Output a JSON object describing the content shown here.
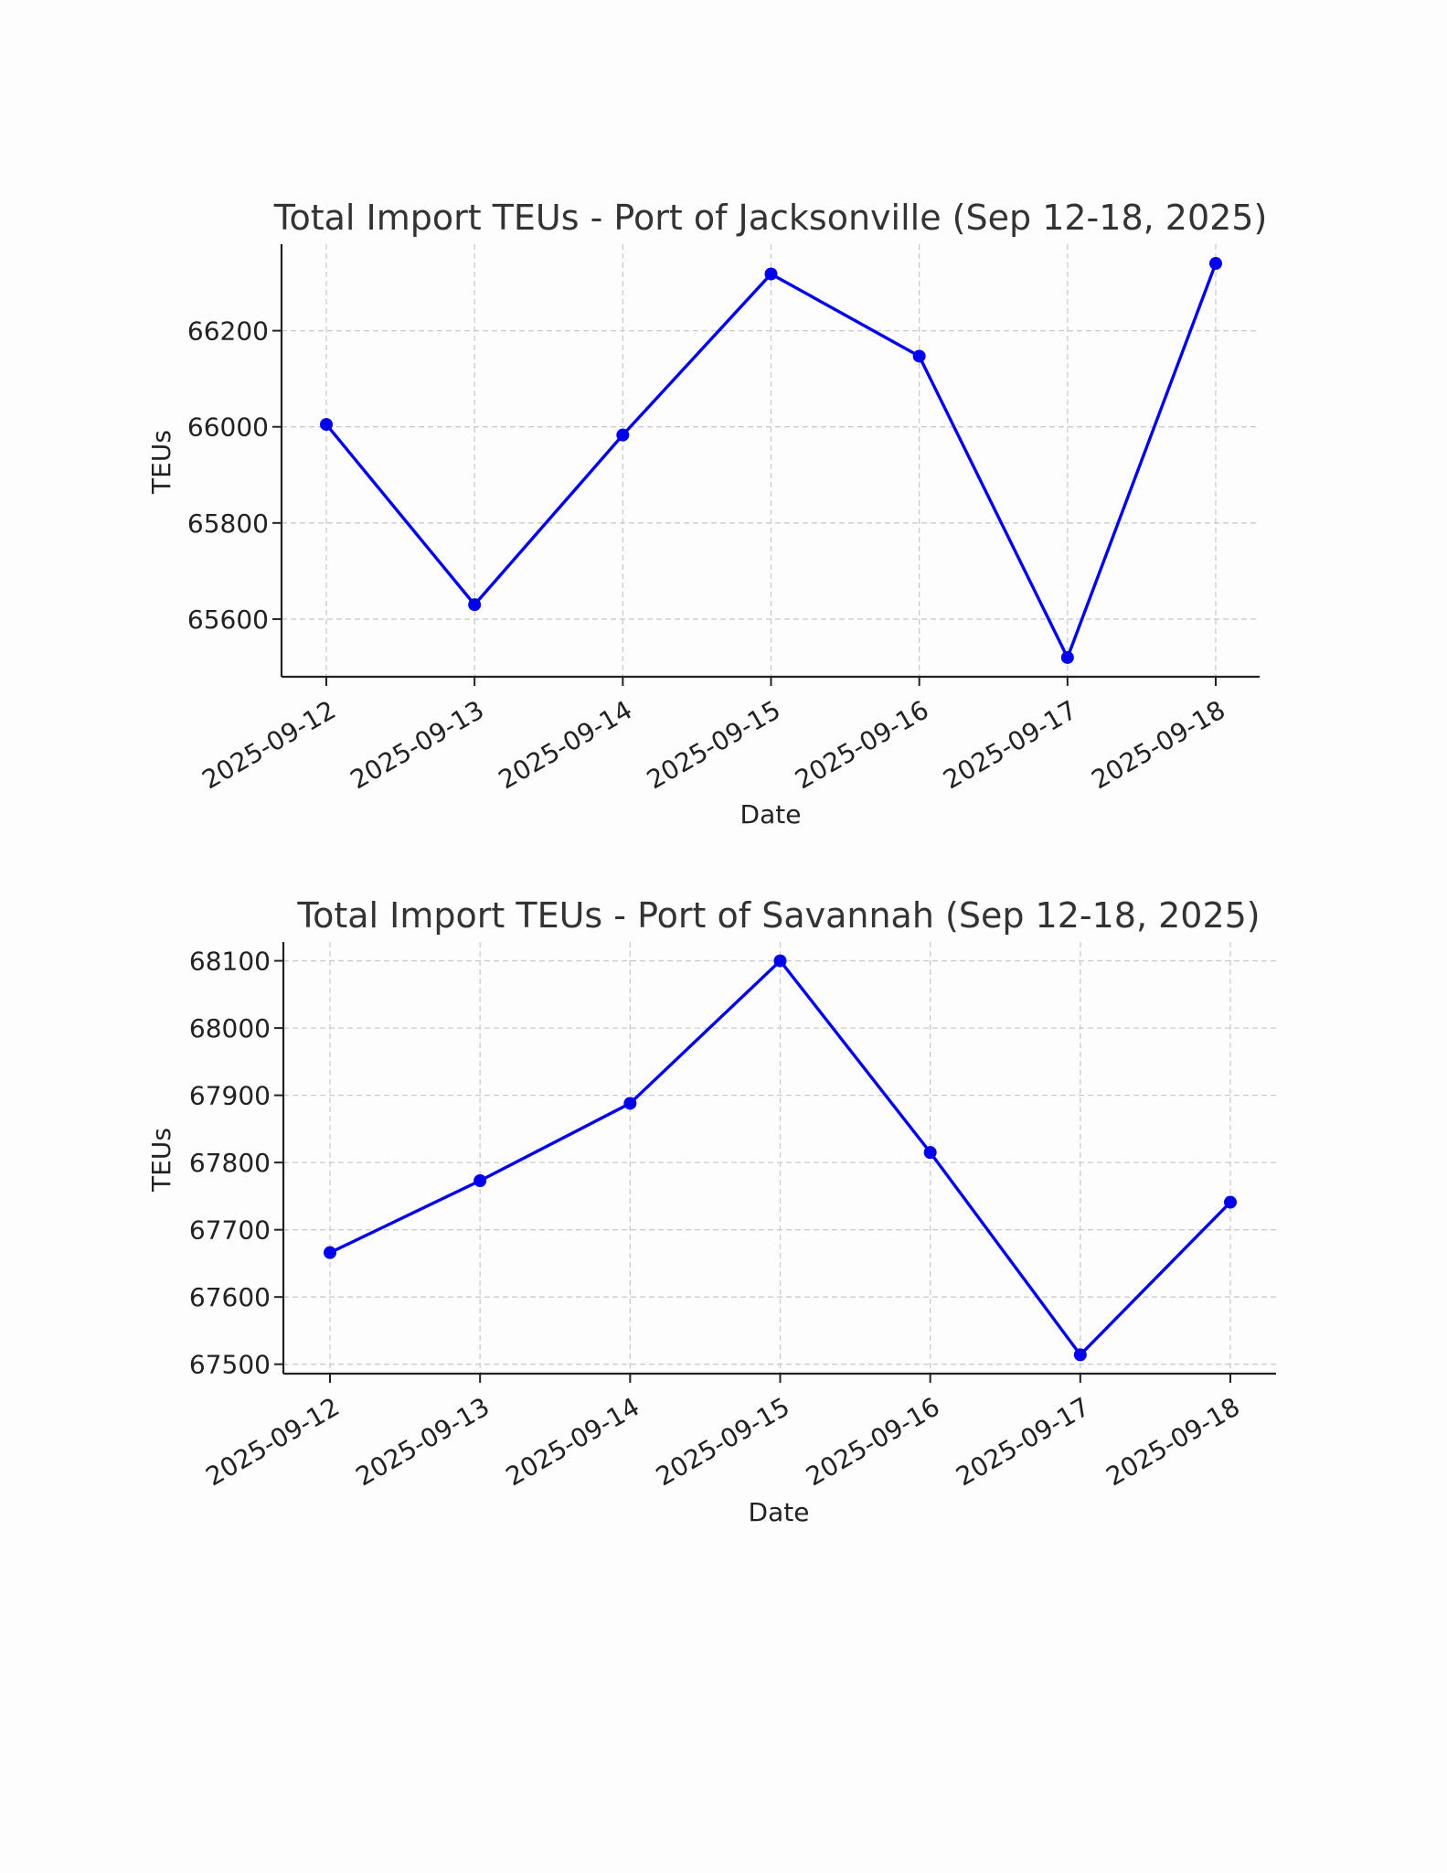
{
  "colors": {
    "series": "#0000ee",
    "background": "#fdfdfd"
  },
  "chart_data": [
    {
      "type": "line",
      "title": "Total Import TEUs - Port of Jacksonville (Sep 12-18, 2025)",
      "xlabel": "Date",
      "ylabel": "TEUs",
      "categories": [
        "2025-09-12",
        "2025-09-13",
        "2025-09-14",
        "2025-09-15",
        "2025-09-16",
        "2025-09-17",
        "2025-09-18"
      ],
      "values": [
        66005,
        65630,
        65983,
        66318,
        66147,
        65520,
        66340
      ],
      "yticks": [
        65600,
        65800,
        66000,
        66200
      ],
      "ylim": [
        65480,
        66380
      ],
      "grid": true,
      "marker": "circle"
    },
    {
      "type": "line",
      "title": "Total Import TEUs - Port of Savannah (Sep 12-18, 2025)",
      "xlabel": "Date",
      "ylabel": "TEUs",
      "categories": [
        "2025-09-12",
        "2025-09-13",
        "2025-09-14",
        "2025-09-15",
        "2025-09-16",
        "2025-09-17",
        "2025-09-18"
      ],
      "values": [
        67666,
        67773,
        67888,
        68100,
        67815,
        67514,
        67741
      ],
      "yticks": [
        67500,
        67600,
        67700,
        67800,
        67900,
        68000,
        68100
      ],
      "ylim": [
        67486,
        68128
      ],
      "grid": true,
      "marker": "circle"
    }
  ]
}
